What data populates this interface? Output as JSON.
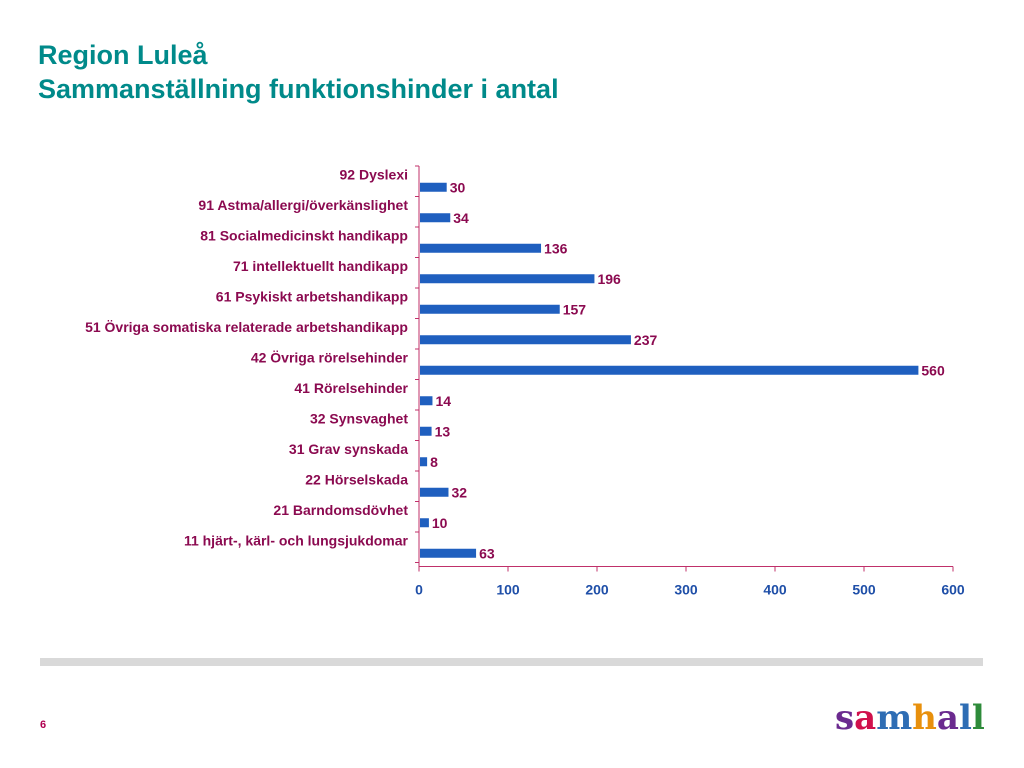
{
  "header": {
    "title_line1": "Region Luleå",
    "title_line2": "Sammanställning funktionshinder i antal"
  },
  "chart_data": {
    "type": "bar",
    "orientation": "horizontal",
    "categories": [
      "92 Dyslexi",
      "91 Astma/allergi/överkänslighet",
      "81 Socialmedicinskt handikapp",
      "71 intellektuellt handikapp",
      "61 Psykiskt arbetshandikapp",
      "51 Övriga somatiska  relaterade arbetshandikapp",
      "42 Övriga rörelsehinder",
      "41 Rörelsehinder",
      "32 Synsvaghet",
      "31 Grav synskada",
      "22 Hörselskada",
      "21 Barndomsdövhet",
      "11 hjärt-, kärl- och lungsjukdomar"
    ],
    "values": [
      30,
      34,
      136,
      196,
      157,
      237,
      560,
      14,
      13,
      8,
      32,
      10,
      63
    ],
    "xlim": [
      0,
      600
    ],
    "xticks": [
      "0",
      "100",
      "200",
      "300",
      "400",
      "500",
      "600"
    ],
    "grid": false,
    "legend": "none",
    "colors": {
      "bar": "#1F5FBF",
      "category_label": "#8B0A50",
      "value_label": "#8B0A50",
      "tick_label": "#1F4FA8",
      "axis": "#C0306A"
    }
  },
  "footer": {
    "page_number": "6",
    "logo": {
      "letters": [
        "s",
        "a",
        "m",
        "h",
        "a",
        "l",
        "l"
      ],
      "colors": [
        "#6B2A8F",
        "#D0104C",
        "#2E6DB4",
        "#E8900C",
        "#6B2A8F",
        "#2E6DB4",
        "#2E8B3A"
      ]
    }
  }
}
